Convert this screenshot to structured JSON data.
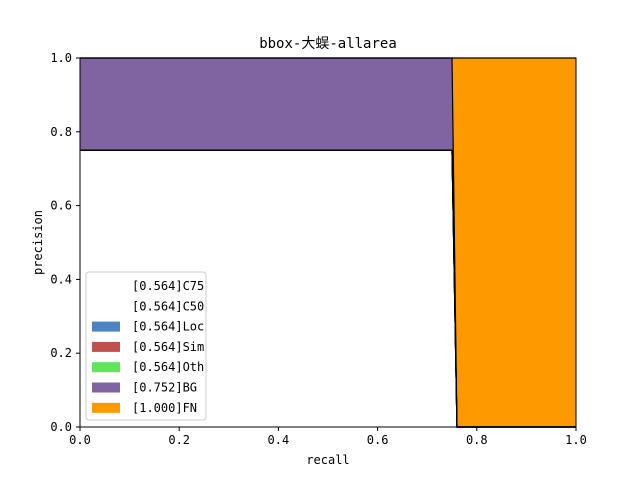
{
  "chart_data": {
    "type": "area",
    "title": "bbox-大蜈-allarea",
    "xlabel": "recall",
    "ylabel": "precision",
    "xlim": [
      0,
      1
    ],
    "ylim": [
      0,
      1
    ],
    "xticks": [
      "0.0",
      "0.2",
      "0.4",
      "0.6",
      "0.8",
      "1.0"
    ],
    "yticks": [
      "0.0",
      "0.2",
      "0.4",
      "0.6",
      "0.8",
      "1.0"
    ],
    "grid": false,
    "legend_position": "lower-left",
    "series": [
      {
        "name": "[0.564]C75",
        "color": "#ffffff",
        "points": [
          [
            0,
            0.75
          ],
          [
            0.75,
            0.75
          ],
          [
            0.76,
            0
          ],
          [
            1,
            0
          ]
        ]
      },
      {
        "name": "[0.564]C50",
        "color": "#ffffff",
        "points": [
          [
            0,
            0.75
          ],
          [
            0.75,
            0.75
          ],
          [
            0.76,
            0
          ],
          [
            1,
            0
          ]
        ]
      },
      {
        "name": "[0.564]Loc",
        "color": "#4c84c4",
        "points": [
          [
            0,
            0.75
          ],
          [
            0.75,
            0.75
          ],
          [
            0.76,
            0
          ],
          [
            1,
            0
          ]
        ]
      },
      {
        "name": "[0.564]Sim",
        "color": "#c0504d",
        "points": [
          [
            0,
            0.75
          ],
          [
            0.75,
            0.75
          ],
          [
            0.76,
            0
          ],
          [
            1,
            0
          ]
        ]
      },
      {
        "name": "[0.564]Oth",
        "color": "#5ee65e",
        "points": [
          [
            0,
            0.75
          ],
          [
            0.75,
            0.75
          ],
          [
            0.76,
            0
          ],
          [
            1,
            0
          ]
        ]
      },
      {
        "name": "[0.752]BG",
        "color": "#8064a2",
        "points": [
          [
            0,
            1
          ],
          [
            0.75,
            1
          ],
          [
            0.76,
            0
          ],
          [
            1,
            0
          ]
        ]
      },
      {
        "name": "[1.000]FN",
        "color": "#ff9900",
        "points": [
          [
            0,
            1
          ],
          [
            1,
            1
          ]
        ]
      }
    ]
  }
}
